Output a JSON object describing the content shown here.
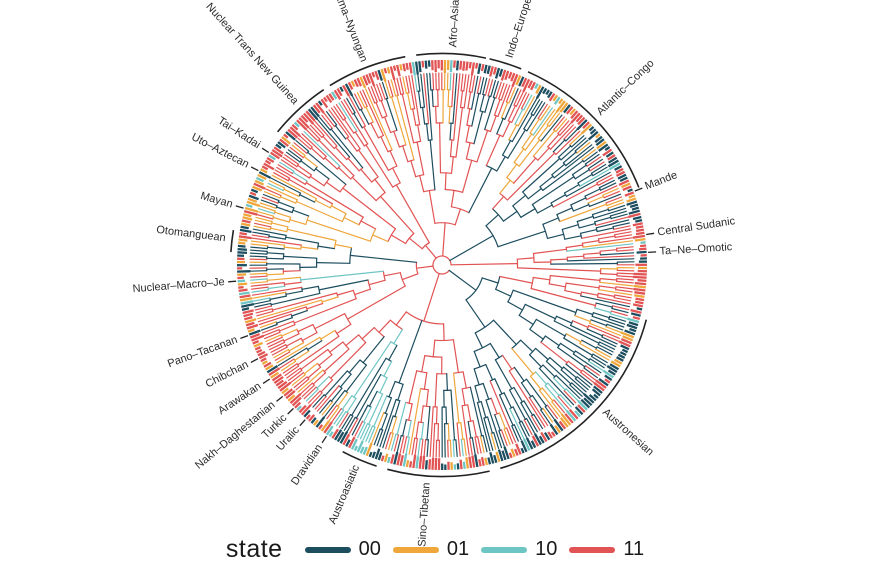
{
  "legend": {
    "title": "state",
    "items": [
      {
        "label": "00",
        "color": "#1d4e5f"
      },
      {
        "label": "01",
        "color": "#efa63b"
      },
      {
        "label": "10",
        "color": "#6ec6c4"
      },
      {
        "label": "11",
        "color": "#e25353"
      }
    ]
  },
  "chart_data": {
    "type": "circular-phylogeny-tree",
    "description": "Circular (fan) phylogenetic tree of world language families; branches and tips coloured by a four-level character state (00, 01, 10, 11); labelled clade brackets around the rim",
    "legend_title": "state",
    "states": [
      "00",
      "01",
      "10",
      "11"
    ],
    "state_colors": [
      "#1d4e5f",
      "#efa63b",
      "#6ec6c4",
      "#e25353"
    ],
    "clade_labels": [
      {
        "name": "Indo–European",
        "angle_deg": 72,
        "arc_span_deg": [
          68,
          77
        ]
      },
      {
        "name": "Afro–Asiatic",
        "angle_deg": 87,
        "arc_span_deg": [
          78,
          97
        ]
      },
      {
        "name": "Pama–Nyungan",
        "angle_deg": 111,
        "arc_span_deg": [
          100,
          122
        ]
      },
      {
        "name": "Nuclear Trans New Guinea",
        "angle_deg": 132,
        "arc_span_deg": [
          124,
          141
        ]
      },
      {
        "name": "Tai–Kadai",
        "angle_deg": 147,
        "arc_span_deg": null
      },
      {
        "name": "Uto–Aztecan",
        "angle_deg": 152.8,
        "arc_span_deg": null
      },
      {
        "name": "Mayan",
        "angle_deg": 164,
        "arc_span_deg": null
      },
      {
        "name": "Otomanguean",
        "angle_deg": 173,
        "arc_span_deg": [
          170.5,
          176.5
        ]
      },
      {
        "name": "Nuclear–Macro–Je",
        "angle_deg": 184.5,
        "arc_span_deg": null
      },
      {
        "name": "Pano–Tacanan",
        "angle_deg": 200,
        "arc_span_deg": null
      },
      {
        "name": "Chibchan",
        "angle_deg": 207,
        "arc_span_deg": null
      },
      {
        "name": "Arawakan",
        "angle_deg": 213.5,
        "arc_span_deg": null
      },
      {
        "name": "Nakh–Daghestanian",
        "angle_deg": 219.5,
        "arc_span_deg": null
      },
      {
        "name": "Turkic",
        "angle_deg": 224,
        "arc_span_deg": null
      },
      {
        "name": "Uralic",
        "angle_deg": 228.5,
        "arc_span_deg": null
      },
      {
        "name": "Dravidian",
        "angle_deg": 236,
        "arc_span_deg": null
      },
      {
        "name": "Austroasiatic",
        "angle_deg": 247,
        "arc_span_deg": [
          242,
          252
        ]
      },
      {
        "name": "Sino–Tibetan",
        "angle_deg": 266,
        "arc_span_deg": [
          255,
          283
        ]
      },
      {
        "name": "Austronesian",
        "angle_deg": 318,
        "arc_span_deg": [
          286,
          345
        ]
      },
      {
        "name": "Ta–Ne–Omotic",
        "angle_deg": 3.5,
        "arc_span_deg": null
      },
      {
        "name": "Central Sudanic",
        "angle_deg": 8.5,
        "arc_span_deg": null
      },
      {
        "name": "Mande",
        "angle_deg": 21,
        "arc_span_deg": null
      },
      {
        "name": "Atlantic–Congo",
        "angle_deg": 44,
        "arc_span_deg": [
          21.5,
          66
        ]
      }
    ]
  }
}
